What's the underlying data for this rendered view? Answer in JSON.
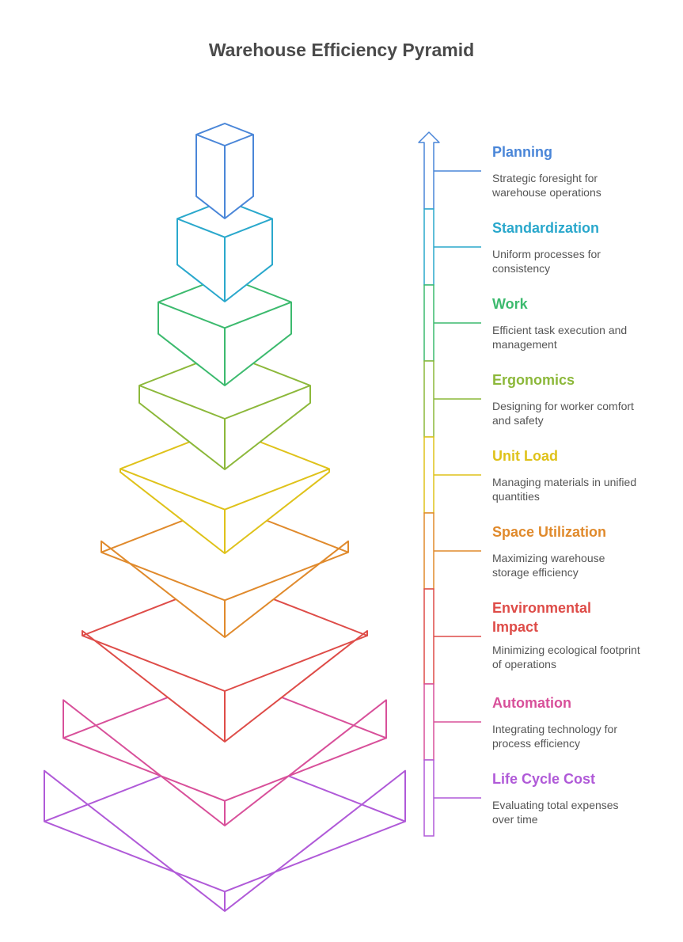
{
  "title": "Warehouse Efficiency Pyramid",
  "levels": [
    {
      "title": "Planning",
      "description": "Strategic foresight for warehouse operations",
      "color": "#4a86d8"
    },
    {
      "title": "Standardization",
      "description": "Uniform processes for consistency",
      "color": "#2aa8cc"
    },
    {
      "title": "Work",
      "description": "Efficient task execution and management",
      "color": "#3cba6e"
    },
    {
      "title": "Ergonomics",
      "description": "Designing for worker comfort and safety",
      "color": "#8cb83a"
    },
    {
      "title": "Unit Load",
      "description": "Managing materials in unified quantities",
      "color": "#dfc21a"
    },
    {
      "title": "Space Utilization",
      "description": "Maximizing warehouse storage efficiency",
      "color": "#e08a2c"
    },
    {
      "title": "Environmental Impact",
      "description": "Minimizing ecological footprint of operations",
      "color": "#de4c48"
    },
    {
      "title": "Automation",
      "description": "Integrating technology for process efficiency",
      "color": "#d8509a"
    },
    {
      "title": "Life Cycle Cost",
      "description": "Evaluating total expenses over time",
      "color": "#b05ad8"
    }
  ]
}
